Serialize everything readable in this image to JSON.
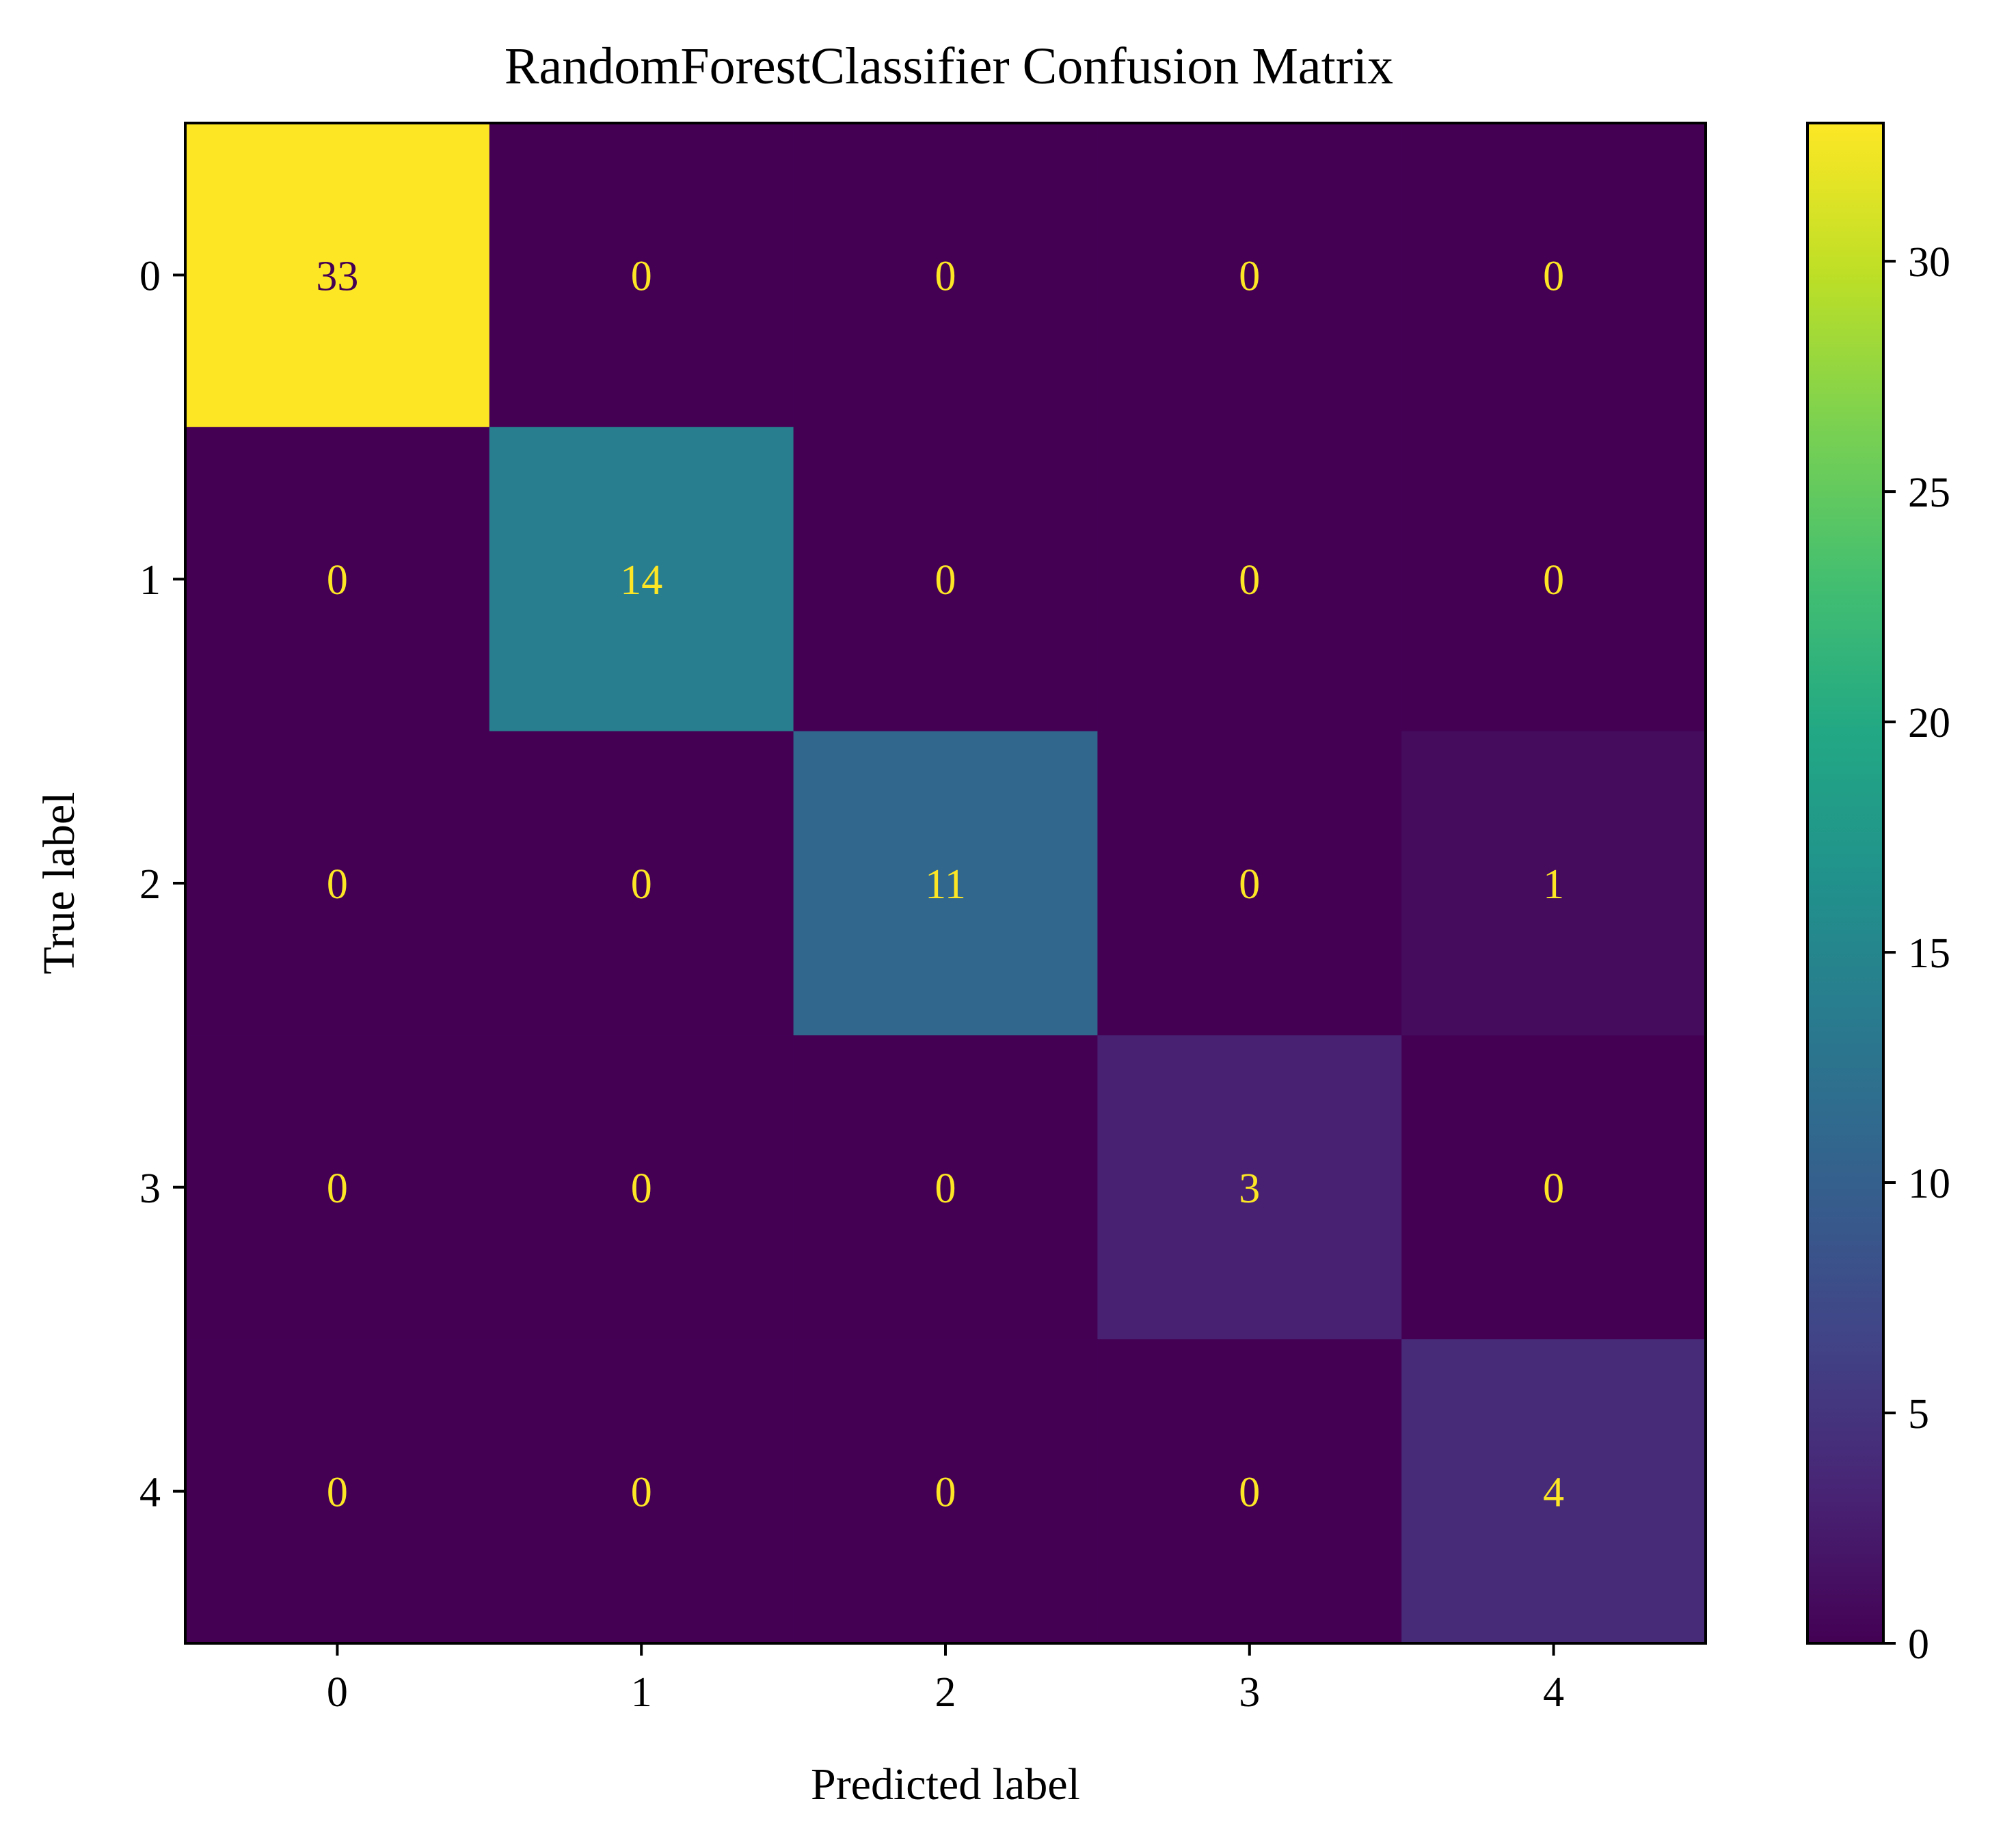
{
  "chart_data": {
    "type": "heatmap",
    "title": "RandomForestClassifier Confusion Matrix",
    "xlabel": "Predicted label",
    "ylabel": "True label",
    "x_categories": [
      "0",
      "1",
      "2",
      "3",
      "4"
    ],
    "y_categories": [
      "0",
      "1",
      "2",
      "3",
      "4"
    ],
    "values": [
      [
        33,
        0,
        0,
        0,
        0
      ],
      [
        0,
        14,
        0,
        0,
        0
      ],
      [
        0,
        0,
        11,
        0,
        1
      ],
      [
        0,
        0,
        0,
        3,
        0
      ],
      [
        0,
        0,
        0,
        0,
        4
      ]
    ],
    "colormap": "viridis",
    "text_color_dark_cells": "#fde725",
    "text_color_light_cells": "#440154",
    "colorbar": {
      "range": [
        0,
        33
      ],
      "ticks": [
        0,
        5,
        10,
        15,
        20,
        25,
        30
      ],
      "tick_labels": [
        "0",
        "5",
        "10",
        "15",
        "20",
        "25",
        "30"
      ]
    },
    "grid": false
  }
}
